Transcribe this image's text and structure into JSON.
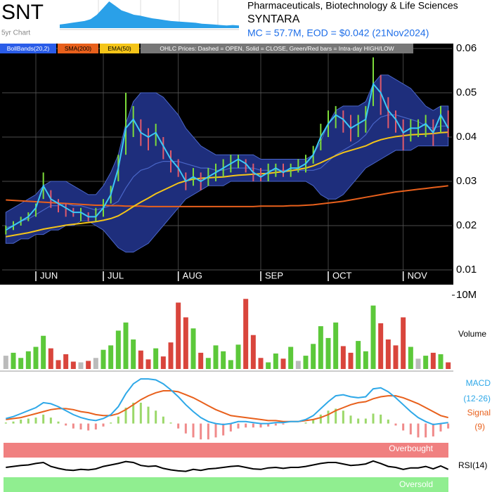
{
  "header": {
    "ticker": "SNT",
    "sector": "Pharmaceuticals, Biotechnology & Life Sciences",
    "name": "SYNTARA",
    "info": "MC = 57.7M, EOD = $0.042 (21Nov2024)"
  },
  "chart_data": [
    {
      "type": "ohlc",
      "categories": [
        null,
        null,
        null,
        null,
        "JUN",
        null,
        null,
        null,
        null,
        null,
        null,
        null,
        null,
        "JUL",
        null,
        null,
        null,
        null,
        null,
        null,
        null,
        null,
        null,
        "AUG",
        null,
        null,
        null,
        null,
        null,
        null,
        null,
        null,
        null,
        null,
        "SEP",
        null,
        null,
        null,
        null,
        null,
        null,
        null,
        null,
        "OCT",
        null,
        null,
        null,
        null,
        null,
        null,
        null,
        null,
        null,
        "NOV",
        null,
        null,
        null,
        null,
        null,
        null
      ],
      "close": [
        0.019,
        0.02,
        0.021,
        0.022,
        0.024,
        0.029,
        0.026,
        0.025,
        0.024,
        0.023,
        0.023,
        0.022,
        0.022,
        0.024,
        0.027,
        0.033,
        0.042,
        0.044,
        0.041,
        0.04,
        0.041,
        0.038,
        0.035,
        0.033,
        0.03,
        0.031,
        0.03,
        0.031,
        0.032,
        0.033,
        0.034,
        0.035,
        0.034,
        0.032,
        0.031,
        0.032,
        0.033,
        0.032,
        0.033,
        0.033,
        0.034,
        0.036,
        0.04,
        0.043,
        0.045,
        0.044,
        0.042,
        0.043,
        0.044,
        0.052,
        0.05,
        0.046,
        0.044,
        0.041,
        0.042,
        0.042,
        0.043,
        0.041,
        0.045,
        0.042
      ],
      "high": [
        0.02,
        0.021,
        0.022,
        0.023,
        0.025,
        0.032,
        0.028,
        0.026,
        0.025,
        0.024,
        0.024,
        0.023,
        0.024,
        0.026,
        0.029,
        0.036,
        0.05,
        0.047,
        0.044,
        0.042,
        0.043,
        0.04,
        0.037,
        0.035,
        0.032,
        0.033,
        0.032,
        0.033,
        0.034,
        0.035,
        0.036,
        0.036,
        0.035,
        0.034,
        0.033,
        0.034,
        0.034,
        0.034,
        0.034,
        0.035,
        0.036,
        0.038,
        0.043,
        0.046,
        0.047,
        0.046,
        0.045,
        0.045,
        0.047,
        0.058,
        0.054,
        0.049,
        0.046,
        0.044,
        0.044,
        0.044,
        0.045,
        0.044,
        0.047,
        0.046
      ],
      "low": [
        0.018,
        0.019,
        0.02,
        0.021,
        0.022,
        0.026,
        0.024,
        0.023,
        0.022,
        0.022,
        0.021,
        0.021,
        0.021,
        0.022,
        0.025,
        0.03,
        0.036,
        0.04,
        0.038,
        0.037,
        0.038,
        0.035,
        0.032,
        0.031,
        0.028,
        0.029,
        0.028,
        0.029,
        0.03,
        0.031,
        0.032,
        0.033,
        0.032,
        0.03,
        0.03,
        0.03,
        0.031,
        0.031,
        0.031,
        0.032,
        0.032,
        0.034,
        0.037,
        0.04,
        0.042,
        0.041,
        0.039,
        0.04,
        0.041,
        0.047,
        0.045,
        0.042,
        0.041,
        0.037,
        0.039,
        0.04,
        0.04,
        0.038,
        0.041,
        0.04
      ],
      "close_color": "#3cc8f5",
      "up_color": "#7ddc3a",
      "down_color": "#e05a6a",
      "ylim": [
        0.01,
        0.06
      ],
      "yticks": [
        0.01,
        0.02,
        0.03,
        0.04,
        0.05,
        0.06
      ],
      "grid": true,
      "note": "OHLC Prices: Dashed = OPEN, Solid = CLOSE, Green/Red bars = Intra-day HIGH/LOW",
      "series": [
        {
          "name": "BollBands(20,2)",
          "color": "#1e2e7c",
          "line_color": "#4a66c8",
          "legend_color": "#2a5ce8",
          "upper": [
            0.023,
            0.024,
            0.025,
            0.026,
            0.027,
            0.029,
            0.03,
            0.03,
            0.03,
            0.029,
            0.028,
            0.027,
            0.027,
            0.029,
            0.032,
            0.036,
            0.043,
            0.048,
            0.05,
            0.05,
            0.05,
            0.049,
            0.047,
            0.045,
            0.042,
            0.04,
            0.038,
            0.037,
            0.036,
            0.036,
            0.036,
            0.036,
            0.036,
            0.036,
            0.035,
            0.035,
            0.035,
            0.035,
            0.035,
            0.035,
            0.035,
            0.036,
            0.039,
            0.043,
            0.046,
            0.047,
            0.047,
            0.047,
            0.048,
            0.052,
            0.054,
            0.054,
            0.053,
            0.052,
            0.051,
            0.049,
            0.047,
            0.046,
            0.047,
            0.047
          ],
          "lower": [
            0.016,
            0.016,
            0.017,
            0.017,
            0.018,
            0.018,
            0.019,
            0.019,
            0.02,
            0.02,
            0.021,
            0.021,
            0.02,
            0.019,
            0.017,
            0.015,
            0.014,
            0.014,
            0.015,
            0.016,
            0.018,
            0.02,
            0.022,
            0.024,
            0.026,
            0.027,
            0.028,
            0.029,
            0.029,
            0.029,
            0.03,
            0.03,
            0.03,
            0.03,
            0.03,
            0.03,
            0.03,
            0.03,
            0.03,
            0.03,
            0.03,
            0.029,
            0.027,
            0.026,
            0.026,
            0.027,
            0.029,
            0.031,
            0.033,
            0.034,
            0.035,
            0.036,
            0.037,
            0.037,
            0.037,
            0.038,
            0.038,
            0.038,
            0.038,
            0.038
          ],
          "middle": [
            0.0195,
            0.02,
            0.021,
            0.0215,
            0.0225,
            0.0235,
            0.0245,
            0.0245,
            0.025,
            0.0245,
            0.0245,
            0.024,
            0.0235,
            0.024,
            0.0245,
            0.0255,
            0.0285,
            0.031,
            0.0325,
            0.033,
            0.034,
            0.0345,
            0.0345,
            0.0345,
            0.034,
            0.0335,
            0.033,
            0.033,
            0.0325,
            0.0325,
            0.033,
            0.033,
            0.033,
            0.033,
            0.0325,
            0.0325,
            0.0325,
            0.0325,
            0.0325,
            0.0325,
            0.0325,
            0.0325,
            0.033,
            0.0345,
            0.036,
            0.037,
            0.038,
            0.039,
            0.0405,
            0.043,
            0.0445,
            0.045,
            0.045,
            0.0445,
            0.044,
            0.0435,
            0.0425,
            0.042,
            0.0425,
            0.0425
          ]
        },
        {
          "name": "SMA(200)",
          "color": "#e8601c",
          "values": [
            0.0258,
            0.0257,
            0.0256,
            0.0255,
            0.0254,
            0.0253,
            0.0252,
            0.0251,
            0.025,
            0.0249,
            0.0248,
            0.0247,
            0.0246,
            0.0246,
            0.0245,
            0.0245,
            0.0244,
            0.0244,
            0.0244,
            0.0243,
            0.0243,
            0.0243,
            0.0243,
            0.0243,
            0.0243,
            0.0243,
            0.0243,
            0.0243,
            0.0243,
            0.0243,
            0.0243,
            0.0243,
            0.0243,
            0.0243,
            0.0244,
            0.0244,
            0.0244,
            0.0244,
            0.0245,
            0.0245,
            0.0246,
            0.0247,
            0.0249,
            0.0251,
            0.0253,
            0.0255,
            0.0258,
            0.0261,
            0.0264,
            0.0267,
            0.027,
            0.0273,
            0.0276,
            0.0278,
            0.028,
            0.0282,
            0.0284,
            0.0286,
            0.0288,
            0.029
          ]
        },
        {
          "name": "EMA(50)",
          "color": "#f5c518",
          "values": [
            0.0175,
            0.0178,
            0.0181,
            0.0184,
            0.0188,
            0.0192,
            0.0195,
            0.0198,
            0.0201,
            0.0203,
            0.0205,
            0.0207,
            0.0209,
            0.0212,
            0.0216,
            0.0222,
            0.0232,
            0.0243,
            0.0253,
            0.0262,
            0.0272,
            0.028,
            0.0288,
            0.0296,
            0.0301,
            0.0305,
            0.0307,
            0.0308,
            0.0309,
            0.031,
            0.0312,
            0.0314,
            0.0315,
            0.0316,
            0.0317,
            0.0318,
            0.032,
            0.0322,
            0.0324,
            0.0327,
            0.033,
            0.0335,
            0.0342,
            0.035,
            0.0358,
            0.0365,
            0.037,
            0.0375,
            0.038,
            0.0388,
            0.0394,
            0.0398,
            0.0401,
            0.0403,
            0.0405,
            0.0406,
            0.0407,
            0.0408,
            0.041,
            0.0411
          ]
        }
      ]
    },
    {
      "type": "volume",
      "title": "Volume",
      "values": [
        1800000,
        2200000,
        1500000,
        2400000,
        3000000,
        4500000,
        2800000,
        1200000,
        2000000,
        1000000,
        900000,
        1100000,
        1500000,
        2600000,
        3200000,
        5200000,
        6300000,
        4000000,
        2500000,
        1300000,
        2800000,
        1700000,
        3600000,
        9000000,
        7000000,
        5500000,
        2200000,
        1500000,
        3200000,
        2400000,
        1200000,
        3300000,
        9500000,
        4600000,
        1500000,
        900000,
        2100000,
        1400000,
        3000000,
        1100000,
        1800000,
        3400000,
        5800000,
        4200000,
        6300000,
        3100000,
        2200000,
        3800000,
        2400000,
        8600000,
        6200000,
        4000000,
        3200000,
        7000000,
        3000000,
        1400000,
        1800000,
        2200000,
        2000000,
        900000
      ],
      "up_color": "#5cc83a",
      "down_color": "#d9453c",
      "flat_color": "#bbbbbb",
      "ylim": [
        0,
        10000000
      ],
      "yticks": [
        {
          "value": 10000000,
          "label": "10M"
        }
      ]
    },
    {
      "type": "macd",
      "ylim": [
        -0.0018,
        0.005
      ],
      "series": [
        {
          "name": "MACD",
          "params": "(12-26)",
          "color": "#2ea8e8",
          "values": [
            0.0005,
            0.0007,
            0.001,
            0.0013,
            0.0016,
            0.0021,
            0.002,
            0.0017,
            0.0013,
            0.0009,
            0.0006,
            0.0004,
            0.0003,
            0.0005,
            0.0009,
            0.0017,
            0.003,
            0.004,
            0.0045,
            0.0045,
            0.0044,
            0.004,
            0.0034,
            0.0027,
            0.0019,
            0.0012,
            0.0006,
            0.0002,
            0.0,
            -0.0001,
            0.0,
            0.0002,
            0.0002,
            0.0001,
            0.0,
            0.0,
            0.0001,
            0.0001,
            0.0002,
            0.0002,
            0.0004,
            0.0008,
            0.0015,
            0.0022,
            0.0028,
            0.0029,
            0.0027,
            0.0026,
            0.0027,
            0.0035,
            0.0036,
            0.0032,
            0.0026,
            0.0019,
            0.0012,
            0.0006,
            0.0002,
            -0.0001,
            0.0,
            0.0001
          ]
        },
        {
          "name": "Signal",
          "params": "(9)",
          "color": "#e8601c",
          "values": [
            0.0004,
            0.0005,
            0.0006,
            0.0008,
            0.001,
            0.0012,
            0.0014,
            0.0015,
            0.0015,
            0.0014,
            0.0012,
            0.0011,
            0.0009,
            0.0008,
            0.0008,
            0.001,
            0.0014,
            0.0019,
            0.0024,
            0.0028,
            0.0031,
            0.0033,
            0.0033,
            0.0032,
            0.0029,
            0.0026,
            0.0022,
            0.0018,
            0.0014,
            0.0011,
            0.0008,
            0.0007,
            0.0006,
            0.0005,
            0.0004,
            0.0003,
            0.0003,
            0.0002,
            0.0002,
            0.0002,
            0.0003,
            0.0004,
            0.0006,
            0.0009,
            0.0013,
            0.0016,
            0.0019,
            0.0021,
            0.0022,
            0.0025,
            0.0027,
            0.0028,
            0.0028,
            0.0026,
            0.0023,
            0.002,
            0.0016,
            0.0012,
            0.0008,
            0.0006
          ]
        },
        {
          "up_color": "#9bd86a",
          "down_color": "#f08a8a",
          "values": [
            0.0001,
            0.0002,
            0.0004,
            0.0005,
            0.0006,
            0.0009,
            0.0006,
            0.0002,
            -0.0002,
            -0.0005,
            -0.0006,
            -0.0007,
            -0.0006,
            -0.0003,
            0.0001,
            0.0007,
            0.0016,
            0.0021,
            0.0021,
            0.0017,
            0.0013,
            0.0007,
            0.0001,
            -0.0005,
            -0.001,
            -0.0014,
            -0.0016,
            -0.0016,
            -0.0014,
            -0.0012,
            -0.0008,
            -0.0005,
            -0.0004,
            -0.0004,
            -0.0004,
            -0.0003,
            -0.0002,
            -0.0001,
            0,
            0,
            0.0001,
            0.0004,
            0.0009,
            0.0013,
            0.0015,
            0.0013,
            0.0008,
            0.0005,
            0.0005,
            0.001,
            0.0009,
            0.0004,
            -0.0002,
            -0.0007,
            -0.0011,
            -0.0014,
            -0.0014,
            -0.0013,
            -0.0008,
            -0.0005
          ]
        }
      ]
    },
    {
      "type": "rsi",
      "title": "RSI(14)",
      "color": "#000000",
      "ylim": [
        0,
        100
      ],
      "overbought": {
        "value": 70,
        "label": "Overbought",
        "color": "#f08080"
      },
      "oversold": {
        "value": 30,
        "label": "Oversold",
        "color": "#90ee90"
      },
      "values": [
        50,
        52,
        54,
        55,
        58,
        60,
        52,
        48,
        45,
        44,
        46,
        45,
        47,
        52,
        55,
        58,
        62,
        60,
        54,
        52,
        53,
        48,
        45,
        43,
        42,
        46,
        44,
        47,
        48,
        50,
        52,
        53,
        50,
        47,
        46,
        49,
        50,
        48,
        50,
        50,
        52,
        55,
        58,
        60,
        60,
        57,
        54,
        55,
        57,
        63,
        58,
        52,
        50,
        46,
        49,
        49,
        52,
        47,
        53,
        46
      ]
    },
    {
      "type": "area",
      "title": "5yr Chart",
      "color": "#2aa0e8",
      "ylim": [
        0,
        60
      ],
      "values": [
        8,
        10,
        12,
        14,
        16,
        20,
        30,
        45,
        60,
        50,
        40,
        35,
        30,
        28,
        25,
        22,
        20,
        18,
        16,
        15,
        14,
        13,
        12,
        10,
        9,
        8,
        7,
        6,
        7,
        6
      ]
    }
  ]
}
